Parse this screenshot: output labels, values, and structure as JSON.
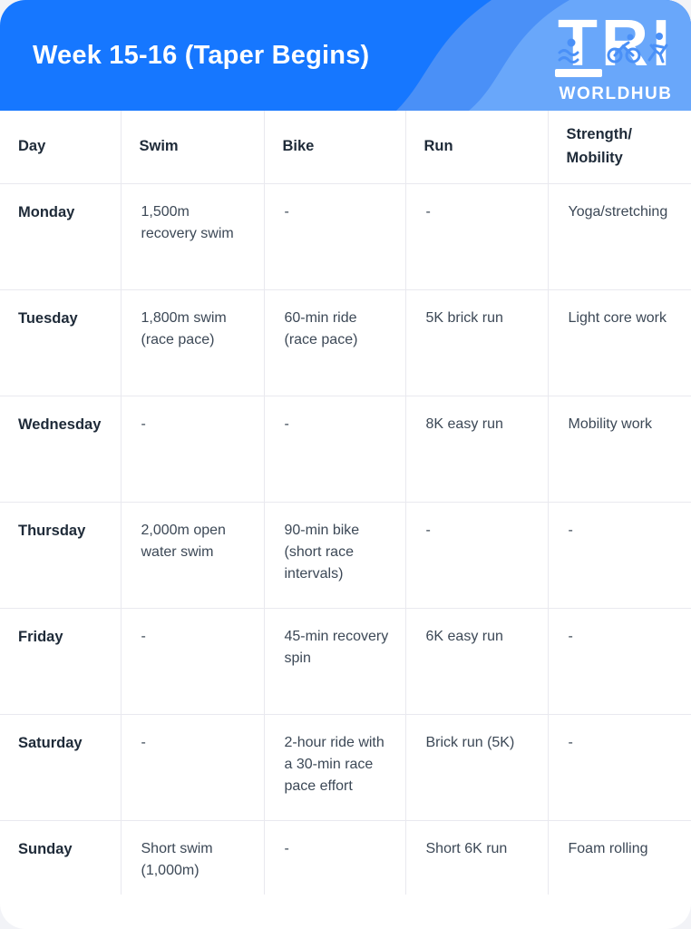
{
  "header": {
    "title": "Week 15-16 (Taper Begins)",
    "logo": {
      "monogram": "TRI",
      "wordmark": "WORLDHUB"
    },
    "colors": {
      "base_blue": "#1677ff",
      "wave_mid_blue": "#4a90f7",
      "wave_light_blue": "#69a7fa",
      "logo_icon_blue": "#4a90f7",
      "logo_white": "#ffffff"
    }
  },
  "table": {
    "columns": [
      {
        "key": "day",
        "label": "Day"
      },
      {
        "key": "swim",
        "label": "Swim"
      },
      {
        "key": "bike",
        "label": "Bike"
      },
      {
        "key": "run",
        "label": "Run"
      },
      {
        "key": "strength",
        "label": "Strength/Mobility"
      }
    ],
    "rows": [
      {
        "day": "Monday",
        "swim": "1,500m recovery swim",
        "bike": "-",
        "run": "-",
        "strength": "Yoga/stretching"
      },
      {
        "day": "Tuesday",
        "swim": "1,800m swim (race pace)",
        "bike": "60-min ride (race pace)",
        "run": "5K brick run",
        "strength": "Light core work"
      },
      {
        "day": "Wednesday",
        "swim": "-",
        "bike": "-",
        "run": "8K easy run",
        "strength": "Mobility work"
      },
      {
        "day": "Thursday",
        "swim": "2,000m open water swim",
        "bike": "90-min bike (short race intervals)",
        "run": "-",
        "strength": "-"
      },
      {
        "day": "Friday",
        "swim": "-",
        "bike": "45-min recovery spin",
        "run": "6K easy run",
        "strength": "-"
      },
      {
        "day": "Saturday",
        "swim": "-",
        "bike": "2-hour ride with a 30-min race pace effort",
        "run": "Brick run (5K)",
        "strength": "-"
      },
      {
        "day": "Sunday",
        "swim": "Short swim (1,000m)",
        "bike": "-",
        "run": "Short 6K run",
        "strength": "Foam rolling"
      }
    ]
  }
}
